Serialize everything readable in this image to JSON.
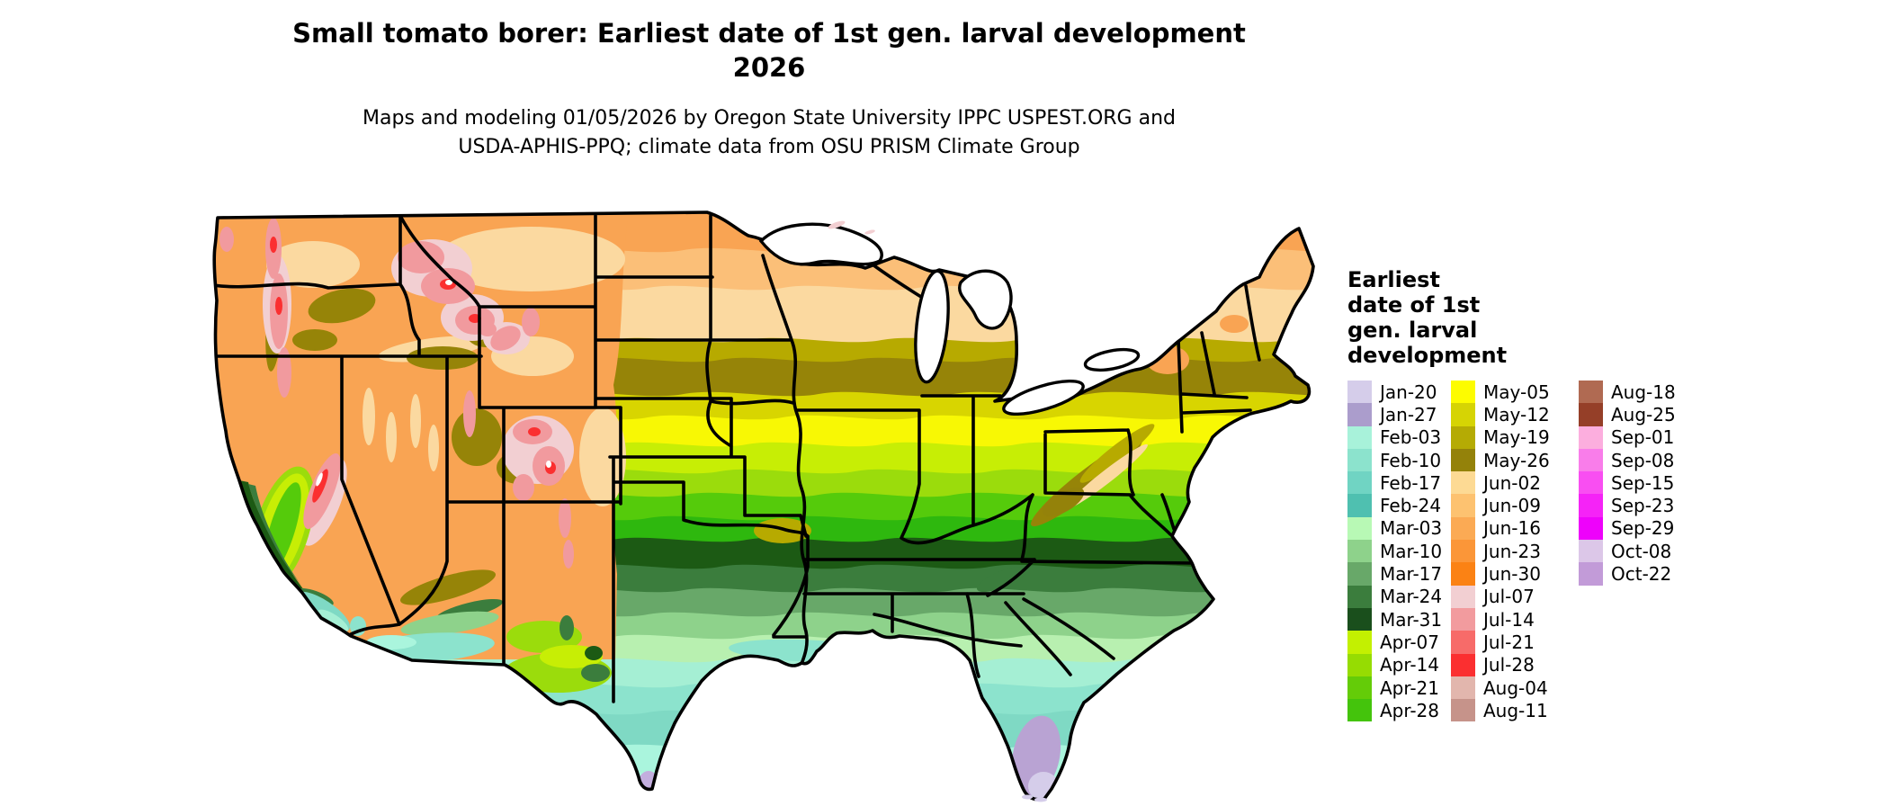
{
  "title": {
    "line1": "Small tomato borer: Earliest date of 1st gen. larval development",
    "line2": "2026"
  },
  "subtitle": {
    "line1": "Maps and modeling 01/05/2026 by Oregon State University IPPC USPEST.ORG and",
    "line2": "USDA-APHIS-PPQ; climate data from OSU PRISM Climate Group"
  },
  "legend": {
    "title_lines": [
      "Earliest",
      "date of 1st",
      "gen. larval",
      "development"
    ],
    "columns": [
      [
        {
          "label": "Jan-20",
          "color": "#d5cdea"
        },
        {
          "label": "Jan-27",
          "color": "#ab9dcc"
        },
        {
          "label": "Feb-03",
          "color": "#a8f2da"
        },
        {
          "label": "Feb-10",
          "color": "#8ce3cd"
        },
        {
          "label": "Feb-17",
          "color": "#70d4c3"
        },
        {
          "label": "Feb-24",
          "color": "#4fc0b0"
        },
        {
          "label": "Mar-03",
          "color": "#b8f9b5"
        },
        {
          "label": "Mar-10",
          "color": "#8ed28b"
        },
        {
          "label": "Mar-17",
          "color": "#68a869"
        },
        {
          "label": "Mar-24",
          "color": "#3b7d3d"
        },
        {
          "label": "Mar-31",
          "color": "#1a4f1c"
        },
        {
          "label": "Apr-07",
          "color": "#c3f001"
        },
        {
          "label": "Apr-14",
          "color": "#96dc02"
        },
        {
          "label": "Apr-21",
          "color": "#64cc08"
        },
        {
          "label": "Apr-28",
          "color": "#44c40c"
        }
      ],
      [
        {
          "label": "May-05",
          "color": "#fdfc00"
        },
        {
          "label": "May-12",
          "color": "#d6d404"
        },
        {
          "label": "May-19",
          "color": "#b5ab04"
        },
        {
          "label": "May-26",
          "color": "#94820a"
        },
        {
          "label": "Jun-02",
          "color": "#fdda94"
        },
        {
          "label": "Jun-09",
          "color": "#fdc270"
        },
        {
          "label": "Jun-16",
          "color": "#fbaa54"
        },
        {
          "label": "Jun-23",
          "color": "#fb9638"
        },
        {
          "label": "Jun-30",
          "color": "#fb8214"
        },
        {
          "label": "Jul-07",
          "color": "#f2cfd2"
        },
        {
          "label": "Jul-14",
          "color": "#f29b9e"
        },
        {
          "label": "Jul-21",
          "color": "#f76b69"
        },
        {
          "label": "Jul-28",
          "color": "#fb2f30"
        },
        {
          "label": "Aug-04",
          "color": "#e2b6ad"
        },
        {
          "label": "Aug-11",
          "color": "#c6938a"
        }
      ],
      [
        {
          "label": "Aug-18",
          "color": "#b06a52"
        },
        {
          "label": "Aug-25",
          "color": "#953f28"
        },
        {
          "label": "Sep-01",
          "color": "#fcaede"
        },
        {
          "label": "Sep-08",
          "color": "#f97dea"
        },
        {
          "label": "Sep-15",
          "color": "#f94ef2"
        },
        {
          "label": "Sep-23",
          "color": "#f523f7"
        },
        {
          "label": "Sep-29",
          "color": "#ee02fb"
        },
        {
          "label": "Oct-08",
          "color": "#dcc7e8"
        },
        {
          "label": "Oct-22",
          "color": "#c29bd8"
        }
      ]
    ]
  },
  "map": {
    "region": "Continental United States",
    "description": "Raster map colored by earliest date of first generation larval development, with black state borders"
  }
}
